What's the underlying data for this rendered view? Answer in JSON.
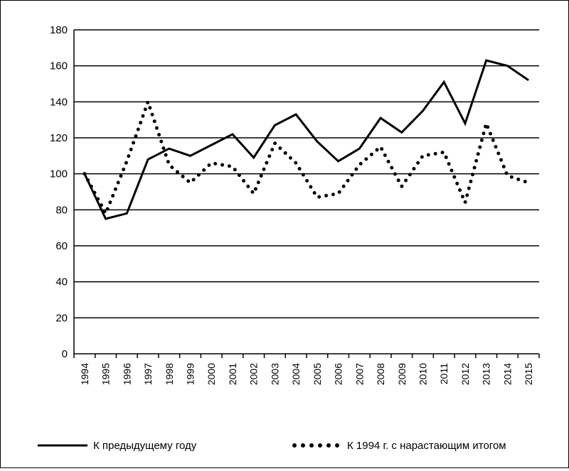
{
  "chart_data": {
    "type": "line",
    "title": "",
    "xlabel": "",
    "ylabel": "",
    "ylim": [
      0,
      180
    ],
    "y_ticks": [
      0,
      20,
      40,
      60,
      80,
      100,
      120,
      140,
      160,
      180
    ],
    "grid": true,
    "legend_position": "bottom",
    "categories": [
      "1994",
      "1995",
      "1996",
      "1997",
      "1998",
      "1999",
      "2000",
      "2001",
      "2002",
      "2003",
      "2004",
      "2005",
      "2006",
      "2007",
      "2008",
      "2009",
      "2010",
      "2011",
      "2012",
      "2013",
      "2014",
      "2015"
    ],
    "series": [
      {
        "name": "К предыдущему году",
        "style": "solid",
        "color": "#000000",
        "values": [
          100,
          75,
          78,
          108,
          114,
          110,
          116,
          122,
          109,
          127,
          133,
          118,
          107,
          114,
          131,
          123,
          135,
          151,
          128,
          163,
          160,
          152
        ]
      },
      {
        "name": "К 1994 г. с нарастающим итогом",
        "style": "dotted",
        "color": "#000000",
        "values": [
          100,
          78,
          107,
          140,
          105,
          95,
          106,
          104,
          89,
          117,
          106,
          87,
          89,
          105,
          115,
          93,
          110,
          112,
          84,
          128,
          99,
          95
        ]
      }
    ]
  }
}
